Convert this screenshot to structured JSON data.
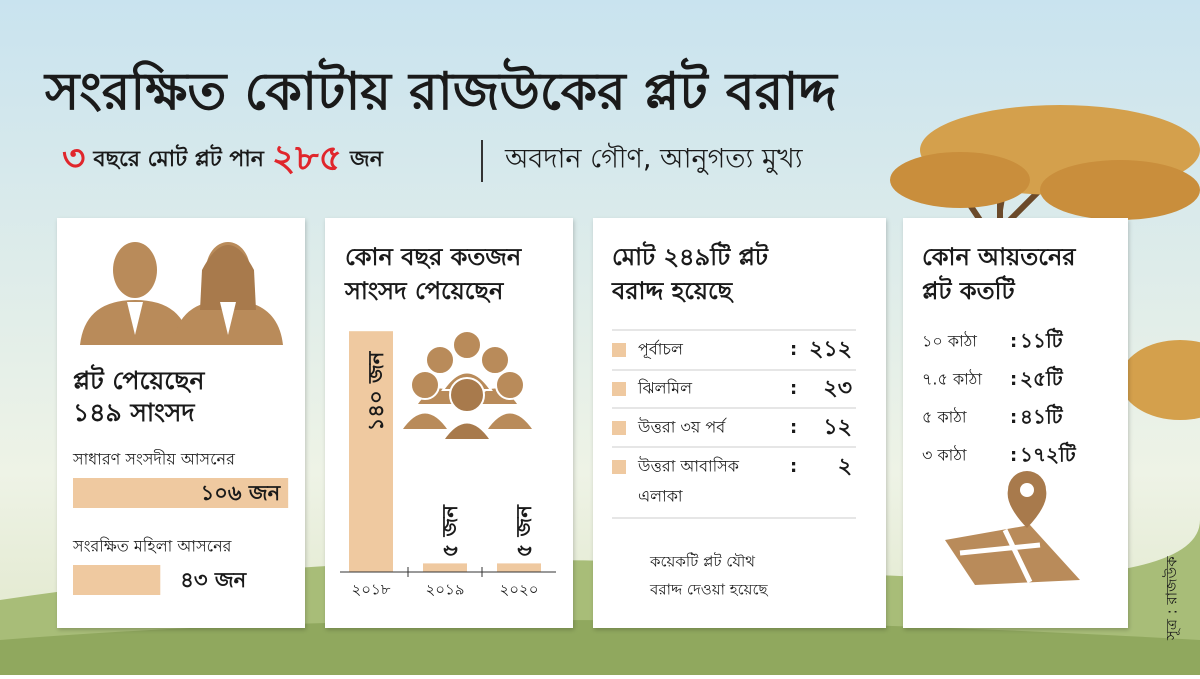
{
  "title": "সংরক্ষিত কোটায় রাজউকের প্লট বরাদ্দ",
  "subtitle": {
    "years": "৩",
    "text1": "বছরে মোট প্লট পান",
    "total": "২৮৫",
    "text2": "জন",
    "tagline": "অবদান গৌণ, আনুগত্য মুখ্য"
  },
  "card1": {
    "heading": [
      "প্লট পেয়েছেন",
      "১৪৯ সাংসদ"
    ],
    "bars": [
      {
        "label": "সাধারণ সংসদীয় আসনের",
        "value": 106,
        "value_label": "১০৬ জন"
      },
      {
        "label": "সংরক্ষিত মহিলা আসনের",
        "value": 43,
        "value_label": "৪৩ জন"
      }
    ]
  },
  "card2": {
    "heading": [
      "কোন বছর কতজন",
      "সাংসদ পেয়েছেন"
    ],
    "categories": [
      "২০১৮",
      "২০১৯",
      "২০২০"
    ],
    "values": [
      140,
      5,
      5
    ],
    "value_labels": [
      "১৪০ জন",
      "৫ জন",
      "৫ জন"
    ]
  },
  "card3": {
    "heading": [
      "মোট ২৪৯টি প্লট",
      "বরাদ্দ হয়েছে"
    ],
    "separator": ":",
    "rows": [
      {
        "name": [
          "পূর্বাচল"
        ],
        "count": "২১২"
      },
      {
        "name": [
          "ঝিলমিল"
        ],
        "count": "২৩"
      },
      {
        "name": [
          "উত্তরা ৩য় পর্ব"
        ],
        "count": "১২"
      },
      {
        "name": [
          "উত্তরা আবাসিক",
          "এলাকা"
        ],
        "count": "২"
      }
    ],
    "note": [
      "কয়েকটি প্লট যৌথ",
      "বরাদ্দ দেওয়া হয়েছে"
    ]
  },
  "card4": {
    "heading": [
      "কোন আয়তনের",
      "প্লট কতটি"
    ],
    "separator": ":",
    "rows": [
      [
        "১০ কাঠা",
        "১১টি"
      ],
      [
        "৭.৫ কাঠা",
        "২৫টি"
      ],
      [
        "৫ কাঠা",
        "৪১টি"
      ],
      [
        "৩ কাঠা",
        "১৭২টি"
      ]
    ]
  },
  "source": "সূত্র : রাজউক"
}
